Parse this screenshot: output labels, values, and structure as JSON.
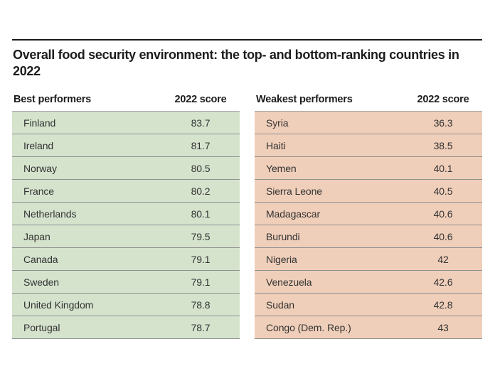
{
  "page": {
    "background": "#ffffff",
    "rule_color": "#1a1a1a",
    "divider_color": "#8f8f8f",
    "text_color": "#1c1c1c"
  },
  "title": "Overall food security environment: the top- and bottom-ranking countries in 2022",
  "tables": [
    {
      "header_label": "Best performers",
      "score_label": "2022 score",
      "row_color": "#d5e3cd",
      "rows": [
        {
          "country": "Finland",
          "score": "83.7"
        },
        {
          "country": "Ireland",
          "score": "81.7"
        },
        {
          "country": "Norway",
          "score": "80.5"
        },
        {
          "country": "France",
          "score": "80.2"
        },
        {
          "country": "Netherlands",
          "score": "80.1"
        },
        {
          "country": "Japan",
          "score": "79.5"
        },
        {
          "country": "Canada",
          "score": "79.1"
        },
        {
          "country": "Sweden",
          "score": "79.1"
        },
        {
          "country": "United Kingdom",
          "score": "78.8"
        },
        {
          "country": "Portugal",
          "score": "78.7"
        }
      ]
    },
    {
      "header_label": "Weakest performers",
      "score_label": "2022 score",
      "row_color": "#f0cfba",
      "rows": [
        {
          "country": "Syria",
          "score": "36.3"
        },
        {
          "country": "Haiti",
          "score": "38.5"
        },
        {
          "country": "Yemen",
          "score": "40.1"
        },
        {
          "country": "Sierra Leone",
          "score": "40.5"
        },
        {
          "country": "Madagascar",
          "score": "40.6"
        },
        {
          "country": "Burundi",
          "score": "40.6"
        },
        {
          "country": "Nigeria",
          "score": "42"
        },
        {
          "country": "Venezuela",
          "score": "42.6"
        },
        {
          "country": "Sudan",
          "score": "42.8"
        },
        {
          "country": "Congo (Dem. Rep.)",
          "score": "43"
        }
      ]
    }
  ],
  "chart_data": {
    "type": "table",
    "title": "Overall food security environment: the top- and bottom-ranking countries in 2022",
    "tables": [
      {
        "name": "Best performers",
        "score_column": "2022 score",
        "categories": [
          "Finland",
          "Ireland",
          "Norway",
          "France",
          "Netherlands",
          "Japan",
          "Canada",
          "Sweden",
          "United Kingdom",
          "Portugal"
        ],
        "values": [
          83.7,
          81.7,
          80.5,
          80.2,
          80.1,
          79.5,
          79.1,
          79.1,
          78.8,
          78.7
        ]
      },
      {
        "name": "Weakest performers",
        "score_column": "2022 score",
        "categories": [
          "Syria",
          "Haiti",
          "Yemen",
          "Sierra Leone",
          "Madagascar",
          "Burundi",
          "Nigeria",
          "Venezuela",
          "Sudan",
          "Congo (Dem. Rep.)"
        ],
        "values": [
          36.3,
          38.5,
          40.1,
          40.5,
          40.6,
          40.6,
          42,
          42.6,
          42.8,
          43
        ]
      }
    ]
  }
}
